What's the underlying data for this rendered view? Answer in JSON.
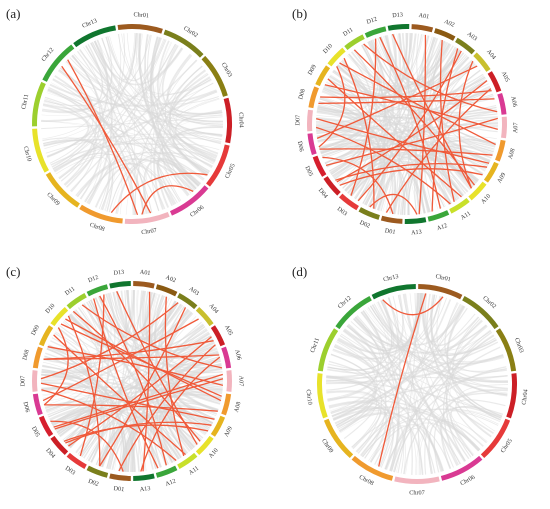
{
  "colors": {
    "background_link": "#d9d9d9",
    "highlight_link": "#f05a3a",
    "palette": [
      "#9c5a1f",
      "#8a5a12",
      "#7a7f1c",
      "#c8bf2e",
      "#e63a3a",
      "#d61f2e",
      "#d93a93",
      "#f2b4be",
      "#f09a2e",
      "#e6b41f",
      "#e8e22a",
      "#9ccf2e",
      "#1f9e3a",
      "#10762e"
    ]
  },
  "panels": [
    {
      "label": "(a)",
      "chromosomes": [
        "Chr01",
        "Chr02",
        "Chr03",
        "Chr04",
        "Chr05",
        "Chr06",
        "Chr07",
        "Chr08",
        "Chr09",
        "Chr10",
        "Chr11",
        "Chr12",
        "Chr13"
      ],
      "chr_colors": [
        "#9c5a1f",
        "#7a7f1c",
        "#8a7f14",
        "#cc1f26",
        "#e63a3a",
        "#d93a93",
        "#f2b4be",
        "#f09a2e",
        "#e6b41f",
        "#e8e22a",
        "#9ccf2e",
        "#3aa63a",
        "#10762e"
      ],
      "highlight_links": [
        [
          11.5,
          6.4
        ],
        [
          11.7,
          6.7
        ],
        [
          5.3,
          6.6
        ],
        [
          4.8,
          7.3
        ]
      ]
    },
    {
      "label": "(b)",
      "chromosomes": [
        "A01",
        "A02",
        "A03",
        "A04",
        "A05",
        "A06",
        "A07",
        "A08",
        "A09",
        "A10",
        "A11",
        "A12",
        "A13",
        "D01",
        "D02",
        "D03",
        "D04",
        "D05",
        "D06",
        "D07",
        "D08",
        "D09",
        "D10",
        "D11",
        "D12",
        "D13"
      ],
      "chr_colors": [
        "#9c5a1f",
        "#8a5a12",
        "#7a7f1c",
        "#c8bf2e",
        "#cc1f26",
        "#d93a93",
        "#f2b4be",
        "#f09a2e",
        "#e6b41f",
        "#e8e22a",
        "#c8e02a",
        "#3aa63a",
        "#10762e",
        "#9c5a1f",
        "#7a7f1c",
        "#e63a3a",
        "#cc1f26",
        "#d61f2e",
        "#d93a93",
        "#f2b4be",
        "#f09a2e",
        "#e6b41f",
        "#e8e22a",
        "#9ccf2e",
        "#3aa63a",
        "#10762e"
      ],
      "highlight_links": [
        [
          2.5,
          15.2
        ],
        [
          3.5,
          18.7
        ],
        [
          4.3,
          16.5
        ],
        [
          5.2,
          20.3
        ],
        [
          6.1,
          17.4
        ],
        [
          7.3,
          22.4
        ],
        [
          8.2,
          19.6
        ],
        [
          9.4,
          23.3
        ],
        [
          10.2,
          21.5
        ],
        [
          11.3,
          24.6
        ],
        [
          12.4,
          14.6
        ],
        [
          0.7,
          12.3
        ],
        [
          1.5,
          10.6
        ],
        [
          3.2,
          9.6
        ],
        [
          4.7,
          13.8
        ],
        [
          5.8,
          23.8
        ],
        [
          6.6,
          21.2
        ],
        [
          7.8,
          18.2
        ],
        [
          8.8,
          16.3
        ],
        [
          9.6,
          25.2
        ],
        [
          10.8,
          19.2
        ],
        [
          11.7,
          2.3
        ],
        [
          13.5,
          17.8
        ],
        [
          14.4,
          22.7
        ],
        [
          15.6,
          24.4
        ],
        [
          18.3,
          22.2
        ],
        [
          20.6,
          4.8
        ],
        [
          16.6,
          8.4
        ]
      ]
    },
    {
      "label": "(c)",
      "chromosomes": [
        "A01",
        "A02",
        "A03",
        "A04",
        "A05",
        "A06",
        "A07",
        "A08",
        "A09",
        "A10",
        "A11",
        "A12",
        "A13",
        "D01",
        "D02",
        "D03",
        "D04",
        "D05",
        "D06",
        "D07",
        "D08",
        "D09",
        "D10",
        "D11",
        "D12",
        "D13"
      ],
      "chr_colors": [
        "#9c5a1f",
        "#8a5a12",
        "#7a7f1c",
        "#c8bf2e",
        "#cc1f26",
        "#d93a93",
        "#f2b4be",
        "#f09a2e",
        "#e6b41f",
        "#e8e22a",
        "#c8e02a",
        "#3aa63a",
        "#10762e",
        "#9c5a1f",
        "#7a7f1c",
        "#e63a3a",
        "#cc1f26",
        "#d61f2e",
        "#d93a93",
        "#f2b4be",
        "#f09a2e",
        "#e6b41f",
        "#e8e22a",
        "#9ccf2e",
        "#3aa63a",
        "#10762e"
      ],
      "highlight_links": [
        [
          24.5,
          11.4
        ],
        [
          24.2,
          11.8
        ],
        [
          3.4,
          18.6
        ],
        [
          4.4,
          16.2
        ],
        [
          5.3,
          20.5
        ],
        [
          6.2,
          17.3
        ],
        [
          7.4,
          22.6
        ],
        [
          8.3,
          19.4
        ],
        [
          9.5,
          23.1
        ],
        [
          10.4,
          21.7
        ],
        [
          2.6,
          14.5
        ],
        [
          0.8,
          12.5
        ],
        [
          1.6,
          10.5
        ],
        [
          4.8,
          13.6
        ],
        [
          5.9,
          23.6
        ],
        [
          6.7,
          21.1
        ],
        [
          7.9,
          18.4
        ],
        [
          8.9,
          16.5
        ],
        [
          9.7,
          25.3
        ],
        [
          10.9,
          19.1
        ],
        [
          13.4,
          17.6
        ],
        [
          14.5,
          22.8
        ],
        [
          15.5,
          24.7
        ],
        [
          18.4,
          22.1
        ],
        [
          20.5,
          4.6
        ],
        [
          16.4,
          8.6
        ],
        [
          17.2,
          6.4
        ],
        [
          19.6,
          2.2
        ],
        [
          22.3,
          7.2
        ],
        [
          12.6,
          5.4
        ]
      ]
    },
    {
      "label": "(d)",
      "chromosomes": [
        "Chr01",
        "Chr02",
        "Chr03",
        "Chr04",
        "Chr05",
        "Chr06",
        "Chr07",
        "Chr08",
        "Chr09",
        "Chr10",
        "Chr11",
        "Chr12",
        "Chr13"
      ],
      "chr_colors": [
        "#9c5a1f",
        "#7a7f1c",
        "#8a7f14",
        "#cc1f26",
        "#e63a3a",
        "#d93a93",
        "#f2b4be",
        "#f09a2e",
        "#e6b41f",
        "#e8e22a",
        "#9ccf2e",
        "#3aa63a",
        "#10762e"
      ],
      "highlight_links": [
        [
          12.2,
          0.6
        ],
        [
          0.2,
          7.4
        ]
      ]
    }
  ]
}
